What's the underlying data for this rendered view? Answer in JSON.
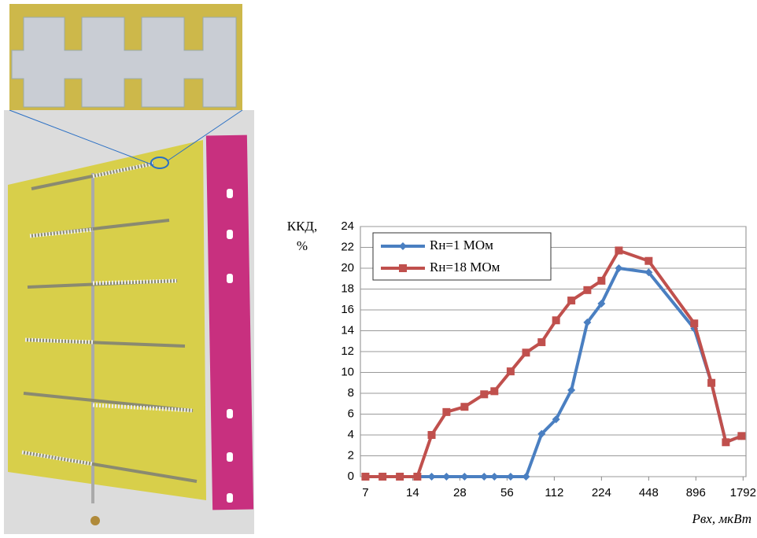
{
  "chart_data": {
    "type": "line",
    "y_label_lines": [
      "ККД,",
      "%"
    ],
    "x_label": "Pвх, мкВт",
    "x": [
      7,
      9,
      11.6,
      15,
      18.5,
      23,
      30,
      40,
      46.5,
      59,
      74,
      93,
      115,
      144,
      182,
      224,
      289,
      448,
      875,
      1126,
      1391,
      1752
    ],
    "series": [
      {
        "name": "Rн=1 МОм",
        "color": "#4a7fc1",
        "marker": "diamond",
        "values": [
          0,
          0,
          0,
          0,
          0,
          0,
          0,
          0,
          0,
          0,
          0,
          4.1,
          5.5,
          8.3,
          14.8,
          16.6,
          20,
          19.6,
          14.2,
          9,
          3.3,
          3.9
        ]
      },
      {
        "name": "Rн=18 МОм",
        "color": "#c0504d",
        "marker": "square",
        "values": [
          0,
          0,
          0,
          0,
          4,
          6.2,
          6.7,
          7.9,
          8.2,
          10.1,
          11.9,
          12.9,
          15,
          16.9,
          17.9,
          18.8,
          21.7,
          20.7,
          14.7,
          9,
          3.3,
          3.9
        ]
      }
    ],
    "xlim": [
      6.5,
      1870
    ],
    "log_scale_x": true,
    "xticks": [
      7,
      14,
      28,
      56,
      112,
      224,
      448,
      896,
      1792
    ],
    "ylim": [
      0,
      24
    ],
    "yticks": [
      0,
      2,
      4,
      6,
      8,
      10,
      12,
      14,
      16,
      18,
      20,
      22,
      24
    ],
    "grid": true
  }
}
